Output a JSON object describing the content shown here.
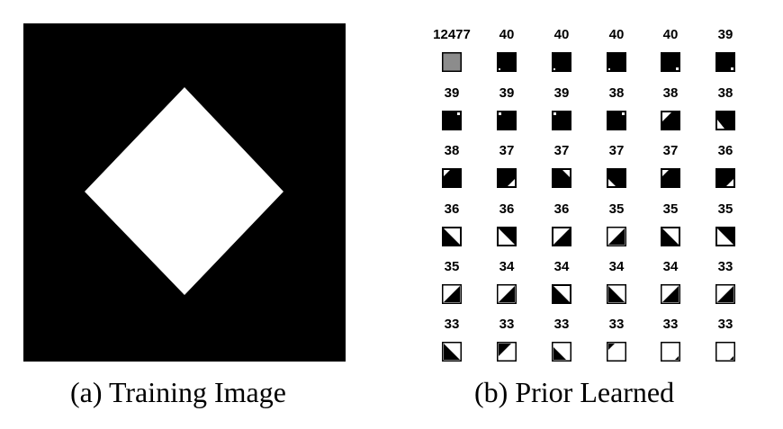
{
  "captions": {
    "a": "(a) Training Image",
    "b": "(b) Prior Learned"
  },
  "prior": {
    "rows": [
      {
        "patches": [
          {
            "count": "12477",
            "pattern": "gray"
          },
          {
            "count": "40",
            "pattern": "dot-bl"
          },
          {
            "count": "40",
            "pattern": "dot-bl"
          },
          {
            "count": "40",
            "pattern": "dot-bl"
          },
          {
            "count": "40",
            "pattern": "dot-br"
          },
          {
            "count": "39",
            "pattern": "dot-br"
          }
        ]
      },
      {
        "patches": [
          {
            "count": "39",
            "pattern": "dot-tr"
          },
          {
            "count": "39",
            "pattern": "dot-tl"
          },
          {
            "count": "39",
            "pattern": "dot-tl"
          },
          {
            "count": "38",
            "pattern": "dot-tr"
          },
          {
            "count": "38",
            "pattern": "corner-tl"
          },
          {
            "count": "38",
            "pattern": "corner-tl2"
          }
        ]
      },
      {
        "patches": [
          {
            "count": "38",
            "pattern": "tri-tl-small"
          },
          {
            "count": "37",
            "pattern": "tri-br-small"
          },
          {
            "count": "37",
            "pattern": "tri-tr-small"
          },
          {
            "count": "37",
            "pattern": "tri-bl-small"
          },
          {
            "count": "37",
            "pattern": "tri-tl-small"
          },
          {
            "count": "36",
            "pattern": "tri-br-small"
          }
        ]
      },
      {
        "patches": [
          {
            "count": "36",
            "pattern": "diag-tr-white"
          },
          {
            "count": "36",
            "pattern": "diag-bl-white"
          },
          {
            "count": "36",
            "pattern": "diag-tl-white"
          },
          {
            "count": "35",
            "pattern": "diag-br-black"
          },
          {
            "count": "35",
            "pattern": "diag-tr-white"
          },
          {
            "count": "35",
            "pattern": "diag-bl-white"
          }
        ]
      },
      {
        "patches": [
          {
            "count": "35",
            "pattern": "half-br-black"
          },
          {
            "count": "34",
            "pattern": "half-br-black"
          },
          {
            "count": "34",
            "pattern": "diag-tr-white"
          },
          {
            "count": "34",
            "pattern": "diag-bl-white2"
          },
          {
            "count": "34",
            "pattern": "half-br-black"
          },
          {
            "count": "33",
            "pattern": "half-br-black"
          }
        ]
      },
      {
        "patches": [
          {
            "count": "33",
            "pattern": "half-bl-black2"
          },
          {
            "count": "33",
            "pattern": "tri-tl-black"
          },
          {
            "count": "33",
            "pattern": "tri-bl-black"
          },
          {
            "count": "33",
            "pattern": "tri-tl-black-small"
          },
          {
            "count": "33",
            "pattern": "tri-br-tiny"
          },
          {
            "count": "33",
            "pattern": "tri-br-tiny"
          }
        ]
      }
    ]
  }
}
